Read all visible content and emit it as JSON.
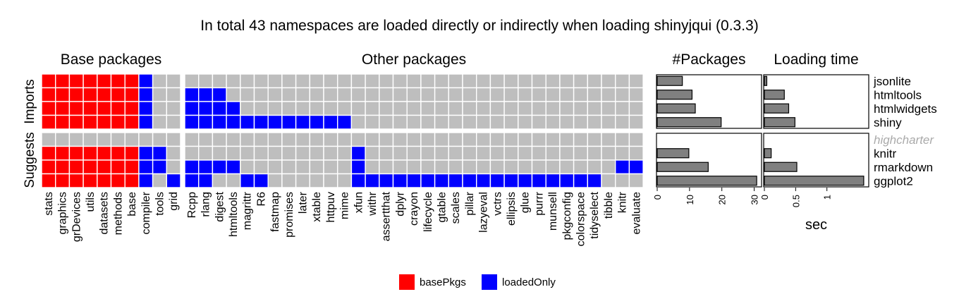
{
  "title": "In total 43 namespaces are loaded directly or indirectly when loading shinyjqui (0.3.3)",
  "colors": {
    "basePkgs": "#ff0000",
    "loadedOnly": "#0000ff",
    "empty": "#bebebe",
    "bar": "#808080"
  },
  "chart_data": [
    {
      "type": "heatmap",
      "panels": [
        {
          "title": "Base packages",
          "columns": [
            "stats",
            "graphics",
            "grDevices",
            "utils",
            "datasets",
            "methods",
            "base",
            "compiler",
            "tools",
            "grid"
          ]
        },
        {
          "title": "Other packages",
          "columns": [
            "Rcpp",
            "rlang",
            "digest",
            "htmltools",
            "magrittr",
            "R6",
            "fastmap",
            "promises",
            "later",
            "xtable",
            "httpuv",
            "mime",
            "xfun",
            "withr",
            "assertthat",
            "dplyr",
            "crayon",
            "lifecycle",
            "gtable",
            "scales",
            "pillar",
            "lazyeval",
            "vctrs",
            "ellipsis",
            "glue",
            "purrr",
            "munsell",
            "pkgconfig",
            "colorspace",
            "tidyselect",
            "tibble",
            "knitr",
            "evaluate"
          ]
        }
      ],
      "facets": [
        "Imports",
        "Suggests"
      ],
      "rows": {
        "Imports": [
          "jsonlite",
          "htmltools",
          "htmlwidgets",
          "shiny"
        ],
        "Suggests": [
          "highcharter",
          "knitr",
          "rmarkdown",
          "ggplot2"
        ]
      },
      "cells": {
        "Imports": {
          "jsonlite": "BBBBBBBL--|------------------------------------",
          "htmltools": "BBBBBBBL--|LLL------------------------------",
          "htmlwidgets": "BBBBBBBL--|LLLL-----------------------------",
          "shiny": "BBBBBBBL--|LLLLLLLLLLLL---------------------"
        },
        "Suggests": {
          "highcharter": "----------|---------------------------------",
          "knitr": "BBBBBBBLL-|------------L--------------------",
          "rmarkdown": "BBBBBBBLL-|LLLL--------L------------------LL",
          "ggplot2": "BBBBBBBL-L|LL--LL------LLLLLLLLLLLLLLLLLL--"
        }
      },
      "legend": [
        "basePkgs",
        "loadedOnly"
      ]
    },
    {
      "type": "bar",
      "title": "#Packages",
      "orientation": "horizontal",
      "categories": [
        "jsonlite",
        "htmltools",
        "htmlwidgets",
        "shiny",
        "highcharter",
        "knitr",
        "rmarkdown",
        "ggplot2"
      ],
      "values": [
        8,
        11,
        12,
        20,
        0,
        10,
        16,
        31
      ],
      "xticks": [
        "0",
        "10",
        "20",
        "30"
      ],
      "xlim": [
        0,
        32.5
      ]
    },
    {
      "type": "bar",
      "title": "Loading time",
      "orientation": "horizontal",
      "categories": [
        "jsonlite",
        "htmltools",
        "htmlwidgets",
        "shiny",
        "highcharter",
        "knitr",
        "rmarkdown",
        "ggplot2"
      ],
      "values": [
        0.05,
        0.33,
        0.4,
        0.5,
        0,
        0.12,
        0.53,
        1.6
      ],
      "xticks": [
        "0",
        "0.5",
        "1"
      ],
      "xlabel": "sec",
      "xlim": [
        0,
        1.68
      ]
    }
  ]
}
